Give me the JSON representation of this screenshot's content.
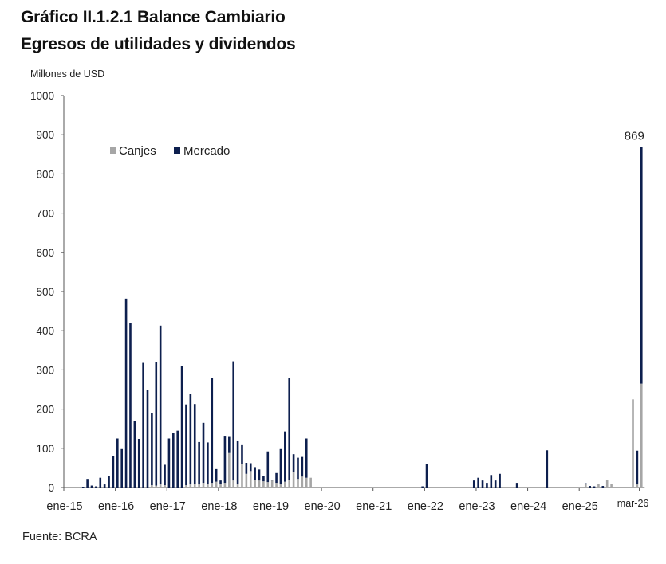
{
  "title_line1": "Gráfico II.1.2.1 Balance Cambiario",
  "title_line2": "Egresos de utilidades y dividendos",
  "unit_label": "Millones de USD",
  "source": "Fuente: BCRA",
  "colors": {
    "canjes": "#a6a6a6",
    "mercado": "#0d1f4e",
    "axis": "#555555"
  },
  "chart_data": {
    "type": "bar",
    "stacked": true,
    "title": "Gráfico II.1.2.1 Balance Cambiario — Egresos de utilidades y dividendos",
    "ylabel": "Millones de USD",
    "ylim": [
      0,
      1000
    ],
    "yticks": [
      0,
      100,
      200,
      300,
      400,
      500,
      600,
      700,
      800,
      900,
      1000
    ],
    "xtick_labels": [
      "ene-15",
      "ene-16",
      "ene-17",
      "ene-18",
      "ene-19",
      "ene-20",
      "ene-21",
      "ene-22",
      "ene-23",
      "ene-24",
      "ene-25",
      "mar-26"
    ],
    "legend_position": "top-left",
    "annotation": {
      "text": "869",
      "month": "2026-03"
    },
    "series": [
      {
        "name": "Canjes",
        "points": [
          [
            "2016-09",
            6
          ],
          [
            "2016-10",
            5
          ],
          [
            "2016-11",
            8
          ],
          [
            "2016-12",
            6
          ],
          [
            "2017-05",
            6
          ],
          [
            "2017-06",
            8
          ],
          [
            "2017-07",
            10
          ],
          [
            "2017-08",
            8
          ],
          [
            "2017-09",
            12
          ],
          [
            "2017-10",
            10
          ],
          [
            "2017-11",
            12
          ],
          [
            "2017-12",
            15
          ],
          [
            "2018-01",
            10
          ],
          [
            "2018-02",
            12
          ],
          [
            "2018-03",
            88
          ],
          [
            "2018-04",
            18
          ],
          [
            "2018-05",
            8
          ],
          [
            "2018-06",
            60
          ],
          [
            "2018-07",
            35
          ],
          [
            "2018-08",
            42
          ],
          [
            "2018-09",
            20
          ],
          [
            "2018-10",
            18
          ],
          [
            "2018-11",
            16
          ],
          [
            "2018-12",
            14
          ],
          [
            "2019-01",
            18
          ],
          [
            "2019-02",
            12
          ],
          [
            "2019-03",
            8
          ],
          [
            "2019-04",
            15
          ],
          [
            "2019-05",
            20
          ],
          [
            "2019-06",
            40
          ],
          [
            "2019-07",
            22
          ],
          [
            "2019-08",
            28
          ],
          [
            "2019-09",
            25
          ],
          [
            "2019-10",
            25
          ],
          [
            "2025-02",
            8
          ],
          [
            "2025-05",
            10
          ],
          [
            "2025-07",
            20
          ],
          [
            "2025-08",
            10
          ],
          [
            "2026-01",
            225
          ],
          [
            "2026-02",
            8
          ],
          [
            "2026-03",
            265
          ]
        ]
      },
      {
        "name": "Mercado",
        "points": [
          [
            "2015-05",
            2
          ],
          [
            "2015-06",
            22
          ],
          [
            "2015-07",
            5
          ],
          [
            "2015-08",
            3
          ],
          [
            "2015-09",
            25
          ],
          [
            "2015-10",
            8
          ],
          [
            "2015-11",
            30
          ],
          [
            "2015-12",
            80
          ],
          [
            "2016-01",
            125
          ],
          [
            "2016-02",
            98
          ],
          [
            "2016-03",
            482
          ],
          [
            "2016-04",
            420
          ],
          [
            "2016-05",
            170
          ],
          [
            "2016-06",
            124
          ],
          [
            "2016-07",
            318
          ],
          [
            "2016-08",
            250
          ],
          [
            "2016-09",
            184
          ],
          [
            "2016-10",
            315
          ],
          [
            "2016-11",
            405
          ],
          [
            "2016-12",
            52
          ],
          [
            "2017-01",
            125
          ],
          [
            "2017-02",
            140
          ],
          [
            "2017-03",
            145
          ],
          [
            "2017-04",
            310
          ],
          [
            "2017-05",
            206
          ],
          [
            "2017-06",
            230
          ],
          [
            "2017-07",
            203
          ],
          [
            "2017-08",
            108
          ],
          [
            "2017-09",
            153
          ],
          [
            "2017-10",
            105
          ],
          [
            "2017-11",
            268
          ],
          [
            "2017-12",
            32
          ],
          [
            "2018-01",
            8
          ],
          [
            "2018-02",
            120
          ],
          [
            "2018-03",
            43
          ],
          [
            "2018-04",
            304
          ],
          [
            "2018-05",
            112
          ],
          [
            "2018-06",
            50
          ],
          [
            "2018-07",
            28
          ],
          [
            "2018-08",
            20
          ],
          [
            "2018-09",
            32
          ],
          [
            "2018-10",
            28
          ],
          [
            "2018-11",
            14
          ],
          [
            "2018-12",
            78
          ],
          [
            "2019-01",
            2
          ],
          [
            "2019-02",
            25
          ],
          [
            "2019-03",
            90
          ],
          [
            "2019-04",
            128
          ],
          [
            "2019-05",
            260
          ],
          [
            "2019-06",
            45
          ],
          [
            "2019-07",
            54
          ],
          [
            "2019-08",
            50
          ],
          [
            "2019-09",
            100
          ],
          [
            "2021-12",
            3
          ],
          [
            "2022-01",
            60
          ],
          [
            "2022-12",
            18
          ],
          [
            "2023-01",
            25
          ],
          [
            "2023-02",
            18
          ],
          [
            "2023-03",
            12
          ],
          [
            "2023-04",
            32
          ],
          [
            "2023-05",
            18
          ],
          [
            "2023-06",
            35
          ],
          [
            "2023-10",
            12
          ],
          [
            "2024-05",
            95
          ],
          [
            "2025-02",
            3
          ],
          [
            "2025-03",
            4
          ],
          [
            "2025-04",
            3
          ],
          [
            "2025-06",
            4
          ],
          [
            "2026-02",
            86
          ],
          [
            "2026-03",
            604
          ]
        ]
      }
    ]
  }
}
